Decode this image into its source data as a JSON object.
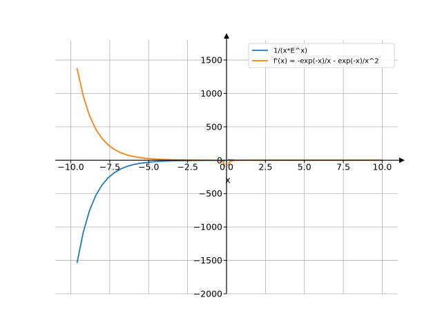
{
  "chart_data": {
    "type": "line",
    "title": "",
    "xlabel": "x",
    "ylabel": "",
    "xlim": [
      -11,
      11
    ],
    "ylim": [
      -2000,
      1800
    ],
    "grid": true,
    "legend_position": "top-right",
    "x_ticks": [
      -10,
      -7.5,
      -5,
      -2.5,
      0,
      2.5,
      5,
      7.5,
      10
    ],
    "x_tick_labels": [
      "−10.0",
      "−7.5",
      "−5.0",
      "−2.5",
      "0.0",
      "2.5",
      "5.0",
      "7.5",
      "10.0"
    ],
    "y_ticks": [
      -2000,
      -1500,
      -1000,
      -500,
      0,
      500,
      1000,
      1500
    ],
    "y_tick_labels": [
      "−2000",
      "−1500",
      "−1000",
      "−500",
      "0",
      "500",
      "1000",
      "1500"
    ],
    "series": [
      {
        "name": "1/(x*E^x)",
        "color": "#1f77b4",
        "x": [
          -9.6,
          -9.2,
          -8.8,
          -8.4,
          -8.0,
          -7.6,
          -7.2,
          -6.8,
          -6.4,
          -6.0,
          -5.5,
          -5.0,
          -4.5,
          -4.0,
          -3.5,
          -3.0,
          -2.5,
          -2.0,
          -1.5,
          -1.0,
          -0.5,
          -0.2,
          -0.1,
          0.1,
          0.2,
          0.5,
          1,
          2,
          3,
          4,
          5,
          6,
          7,
          8,
          9,
          10
        ],
        "y": [
          -1538,
          -1078,
          -754,
          -528,
          -373,
          -262,
          -186,
          -132,
          -94,
          -67,
          -44.5,
          -29.7,
          -20.0,
          -13.6,
          -9.4,
          -6.7,
          -4.9,
          -3.7,
          -3.0,
          -2.7,
          -3.3,
          -6.1,
          -11.1,
          9.0,
          4.1,
          1.2,
          0.37,
          0.068,
          0.017,
          0.0046,
          0.0013,
          0.0004,
          0.00013,
          4e-05,
          1.4e-05,
          4.5e-06
        ]
      },
      {
        "name": "f'(x) = -exp(-x)/x - exp(-x)/x^2",
        "color": "#ff7f0e",
        "x": [
          -9.6,
          -9.2,
          -8.8,
          -8.4,
          -8.0,
          -7.6,
          -7.2,
          -6.8,
          -6.4,
          -6.0,
          -5.5,
          -5.0,
          -4.5,
          -4.0,
          -3.5,
          -3.0,
          -2.5,
          -2.0,
          -1.5,
          -1.0,
          -0.5,
          -0.2,
          -0.1,
          0.1,
          0.2,
          0.5,
          1,
          2,
          3,
          4,
          5,
          6,
          7,
          8,
          9,
          10
        ],
        "y": [
          1378,
          961,
          668,
          465,
          326,
          228,
          160,
          113,
          80,
          56,
          36.4,
          23.7,
          15.6,
          10.2,
          6.7,
          4.5,
          2.9,
          1.85,
          1.0,
          0.0,
          -6.6,
          -24.4,
          -100,
          -81,
          -20.5,
          -3.6,
          -0.74,
          -0.1,
          -0.022,
          -0.0057,
          -0.0016,
          -0.00046,
          -0.00015,
          -5e-05,
          -1.5e-05,
          -5e-06
        ]
      }
    ]
  }
}
